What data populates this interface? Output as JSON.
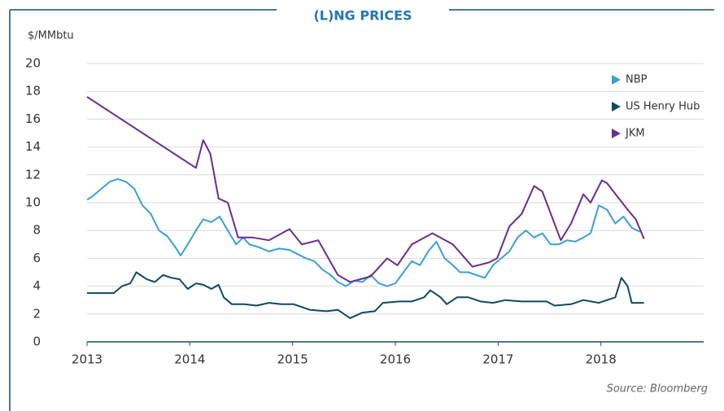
{
  "chart_data": {
    "type": "line",
    "title": "(L)NG PRICES",
    "y_label": "$/MMbtu",
    "source": "Source: Bloomberg",
    "xlim": [
      2013,
      2019
    ],
    "xticks": [
      2013,
      2014,
      2015,
      2016,
      2017,
      2018
    ],
    "ylim": [
      0,
      20
    ],
    "yticks": [
      0,
      2,
      4,
      6,
      8,
      10,
      12,
      14,
      16,
      18,
      20
    ],
    "grid": true,
    "legend": "top-right",
    "series": [
      {
        "name": "NBP",
        "color": "#3a9fd6",
        "x": [
          2013.0,
          2013.06,
          2013.14,
          2013.22,
          2013.3,
          2013.38,
          2013.46,
          2013.54,
          2013.62,
          2013.7,
          2013.78,
          2013.86,
          2013.91,
          2013.98,
          2014.06,
          2014.13,
          2014.21,
          2014.29,
          2014.37,
          2014.45,
          2014.52,
          2014.58,
          2014.67,
          2014.77,
          2014.87,
          2014.97,
          2015.05,
          2015.13,
          2015.21,
          2015.29,
          2015.37,
          2015.44,
          2015.52,
          2015.6,
          2015.68,
          2015.76,
          2015.84,
          2015.92,
          2016.0,
          2016.08,
          2016.16,
          2016.24,
          2016.32,
          2016.4,
          2016.48,
          2016.56,
          2016.63,
          2016.71,
          2016.79,
          2016.87,
          2016.95,
          2017.03,
          2017.11,
          2017.19,
          2017.27,
          2017.35,
          2017.43,
          2017.51,
          2017.59,
          2017.67,
          2017.75,
          2017.83,
          2017.9,
          2017.98,
          2018.06,
          2018.14,
          2018.22,
          2018.3,
          2018.38
        ],
        "values": [
          10.2,
          10.5,
          11.0,
          11.5,
          11.7,
          11.5,
          11.0,
          9.8,
          9.2,
          8.0,
          7.6,
          6.8,
          6.2,
          7.0,
          8.0,
          8.8,
          8.6,
          9.0,
          8.0,
          7.0,
          7.5,
          7.0,
          6.8,
          6.5,
          6.7,
          6.6,
          6.3,
          6.0,
          5.8,
          5.2,
          4.8,
          4.3,
          4.0,
          4.4,
          4.3,
          4.8,
          4.2,
          4.0,
          4.2,
          5.0,
          5.8,
          5.5,
          6.5,
          7.2,
          6.0,
          5.5,
          5.0,
          5.0,
          4.8,
          4.6,
          5.5,
          6.0,
          6.5,
          7.5,
          8.0,
          7.5,
          7.8,
          7.0,
          7.0,
          7.3,
          7.2,
          7.5,
          7.8,
          9.8,
          9.5,
          8.5,
          9.0,
          8.2,
          7.9
        ]
      },
      {
        "name": "US Henry Hub",
        "color": "#0d4a66",
        "x": [
          2013.0,
          2013.26,
          2013.34,
          2013.42,
          2013.48,
          2013.58,
          2013.66,
          2013.74,
          2013.82,
          2013.9,
          2013.98,
          2014.06,
          2014.13,
          2014.21,
          2014.28,
          2014.33,
          2014.41,
          2014.53,
          2014.65,
          2014.77,
          2014.89,
          2015.01,
          2015.17,
          2015.33,
          2015.44,
          2015.56,
          2015.68,
          2015.8,
          2015.88,
          2016.04,
          2016.16,
          2016.28,
          2016.34,
          2016.44,
          2016.5,
          2016.6,
          2016.71,
          2016.83,
          2016.95,
          2017.07,
          2017.23,
          2017.35,
          2017.47,
          2017.55,
          2017.71,
          2017.83,
          2017.98,
          2018.14,
          2018.2,
          2018.26,
          2018.3,
          2018.42
        ],
        "values": [
          3.5,
          3.5,
          4.0,
          4.2,
          5.0,
          4.5,
          4.3,
          4.8,
          4.6,
          4.5,
          3.8,
          4.2,
          4.1,
          3.8,
          4.1,
          3.2,
          2.7,
          2.7,
          2.6,
          2.8,
          2.7,
          2.7,
          2.3,
          2.2,
          2.3,
          1.7,
          2.1,
          2.2,
          2.8,
          2.9,
          2.9,
          3.2,
          3.7,
          3.2,
          2.7,
          3.2,
          3.2,
          2.9,
          2.8,
          3.0,
          2.9,
          2.9,
          2.9,
          2.6,
          2.7,
          3.0,
          2.8,
          3.2,
          4.6,
          4.0,
          2.8,
          2.8
        ]
      },
      {
        "name": "JKM",
        "color": "#6a2c91",
        "x": [
          2013.0,
          2014.06,
          2014.13,
          2014.2,
          2014.28,
          2014.37,
          2014.47,
          2014.61,
          2014.77,
          2014.97,
          2015.09,
          2015.25,
          2015.44,
          2015.56,
          2015.76,
          2015.92,
          2016.02,
          2016.16,
          2016.36,
          2016.56,
          2016.75,
          2016.91,
          2016.99,
          2017.11,
          2017.23,
          2017.35,
          2017.43,
          2017.61,
          2017.71,
          2017.83,
          2017.9,
          2018.01,
          2018.06,
          2018.26,
          2018.34,
          2018.42
        ],
        "values": [
          17.6,
          12.5,
          14.5,
          13.5,
          10.3,
          10.0,
          7.5,
          7.5,
          7.3,
          8.1,
          7.0,
          7.3,
          4.8,
          4.3,
          4.7,
          6.0,
          5.5,
          7.0,
          7.8,
          7.0,
          5.4,
          5.7,
          6.0,
          8.3,
          9.2,
          11.2,
          10.8,
          7.3,
          8.5,
          10.6,
          10.0,
          11.6,
          11.4,
          9.5,
          8.8,
          7.4
        ]
      }
    ]
  }
}
